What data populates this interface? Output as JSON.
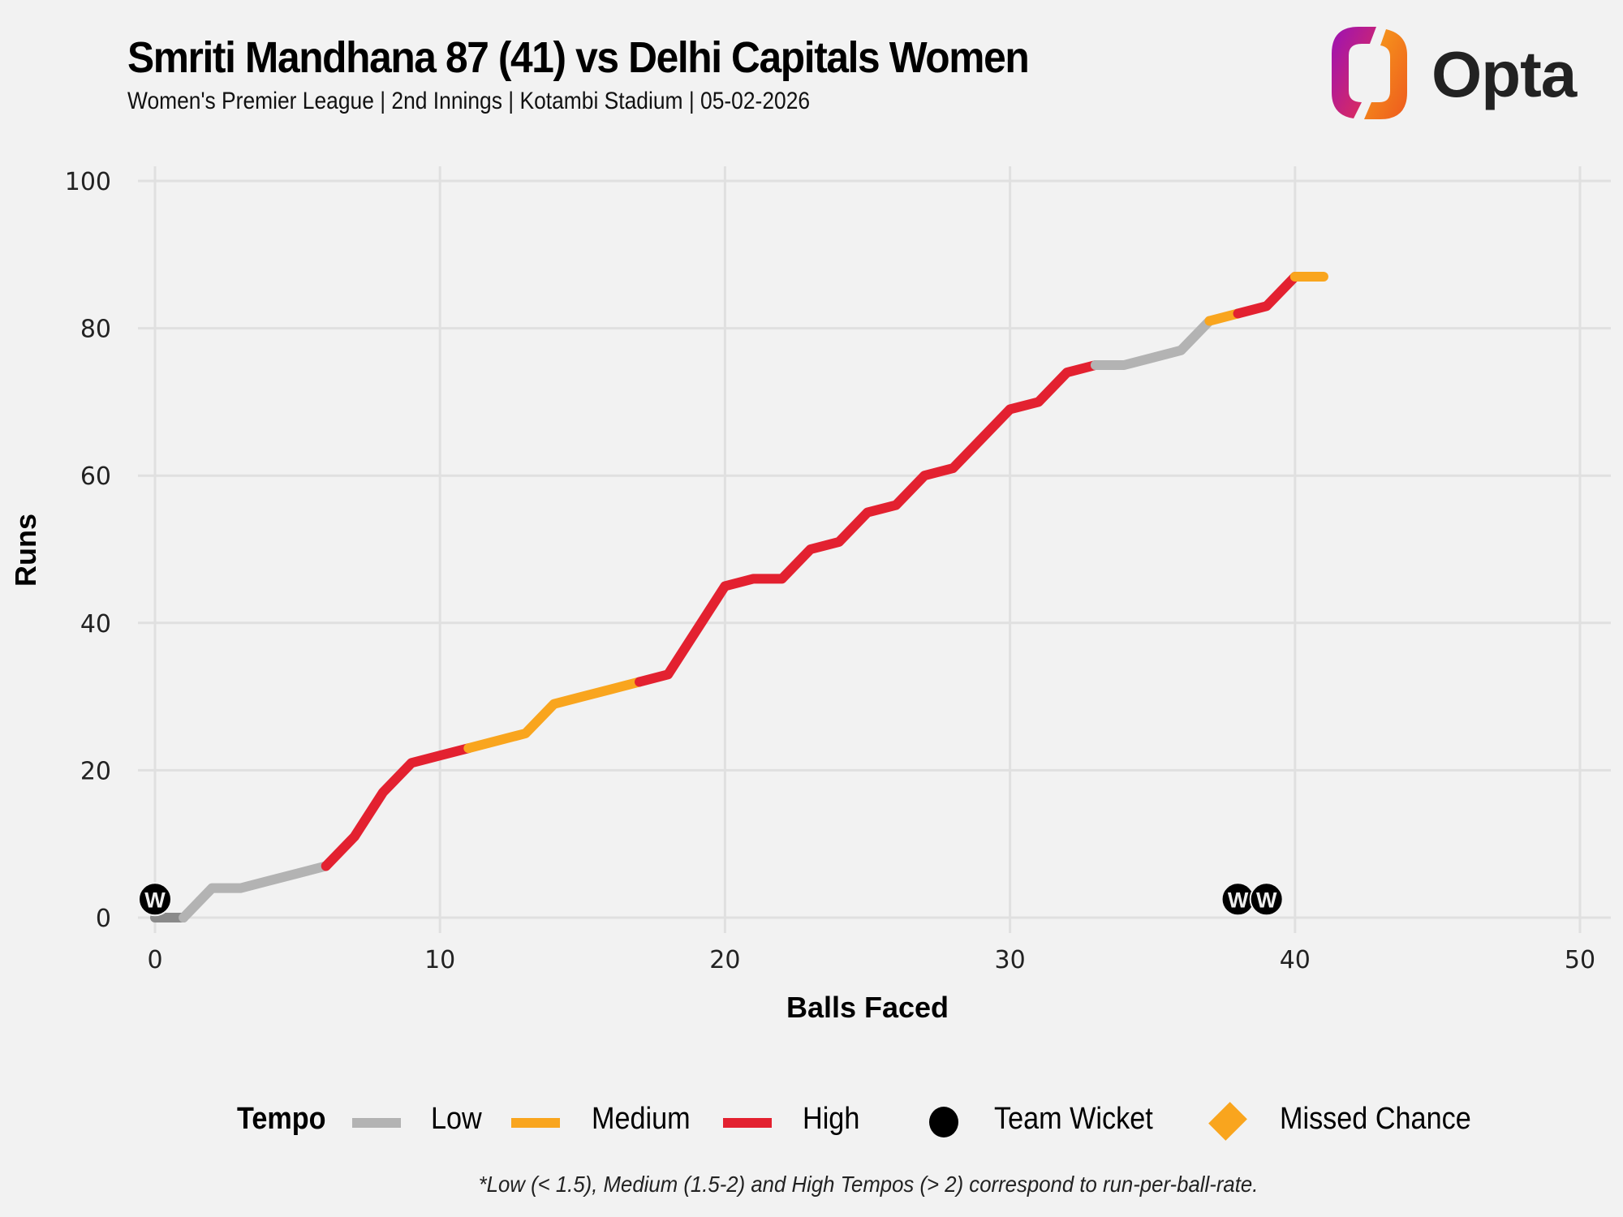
{
  "header": {
    "title": "Smriti Mandhana 87 (41) vs Delhi Capitals Women",
    "subtitle": "Women's Premier League | 2nd Innings | Kotambi Stadium | 05-02-2026",
    "logo_text": "Opta"
  },
  "legend": {
    "title": "Tempo",
    "low": "Low",
    "medium": "Medium",
    "high": "High",
    "wicket": "Team Wicket",
    "missed": "Missed Chance"
  },
  "footnote": "*Low (< 1.5), Medium (1.5-2) and High Tempos (> 2) correspond to run-per-ball-rate.",
  "colors": {
    "low": "#b3b3b3",
    "low_dark": "#8a8a8a",
    "medium": "#f9a51e",
    "high": "#e32130",
    "wicket": "#000000",
    "grid": "#e0e0e0",
    "background": "#f2f2f2"
  },
  "chart_data": {
    "type": "line",
    "title": "Smriti Mandhana 87 (41) vs Delhi Capitals Women",
    "xlabel": "Balls Faced",
    "ylabel": "Runs",
    "xlim": [
      0,
      50
    ],
    "ylim": [
      0,
      100
    ],
    "xticks": [
      0,
      10,
      20,
      30,
      40,
      50
    ],
    "yticks": [
      0,
      20,
      40,
      60,
      80,
      100
    ],
    "grid": true,
    "legend_position": "bottom",
    "x": [
      0,
      1,
      2,
      3,
      4,
      5,
      6,
      7,
      8,
      9,
      10,
      11,
      12,
      13,
      14,
      15,
      16,
      17,
      18,
      19,
      20,
      21,
      22,
      23,
      24,
      25,
      26,
      27,
      28,
      29,
      30,
      31,
      32,
      33,
      34,
      35,
      36,
      37,
      38,
      39,
      40,
      41
    ],
    "runs": [
      0,
      0,
      4,
      4,
      5,
      6,
      7,
      11,
      17,
      21,
      22,
      23,
      24,
      25,
      29,
      30,
      31,
      32,
      33,
      39,
      45,
      46,
      46,
      50,
      51,
      55,
      56,
      60,
      61,
      65,
      69,
      70,
      74,
      75,
      75,
      76,
      77,
      81,
      82,
      83,
      87,
      87
    ],
    "tempo_segments": [
      {
        "from": 0,
        "to": 1,
        "tempo": "low_dark"
      },
      {
        "from": 1,
        "to": 6,
        "tempo": "low"
      },
      {
        "from": 6,
        "to": 11,
        "tempo": "high"
      },
      {
        "from": 11,
        "to": 17,
        "tempo": "medium"
      },
      {
        "from": 17,
        "to": 33,
        "tempo": "high"
      },
      {
        "from": 33,
        "to": 37,
        "tempo": "low"
      },
      {
        "from": 37,
        "to": 38,
        "tempo": "medium"
      },
      {
        "from": 38,
        "to": 40,
        "tempo": "high"
      },
      {
        "from": 40,
        "to": 41,
        "tempo": "medium"
      }
    ],
    "wickets": [
      {
        "ball": 0,
        "label": "W"
      },
      {
        "ball": 38,
        "label": "W"
      },
      {
        "ball": 39,
        "label": "W"
      }
    ],
    "wicket_marker_runs": 2.5,
    "missed_chances": []
  }
}
